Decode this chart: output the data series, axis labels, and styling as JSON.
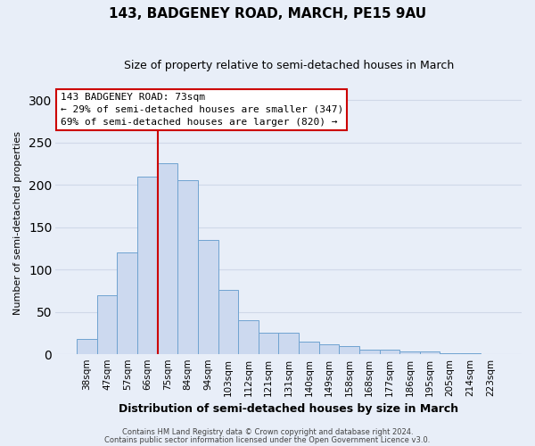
{
  "title": "143, BADGENEY ROAD, MARCH, PE15 9AU",
  "subtitle": "Size of property relative to semi-detached houses in March",
  "xlabel": "Distribution of semi-detached houses by size in March",
  "ylabel": "Number of semi-detached properties",
  "bar_labels": [
    "38sqm",
    "47sqm",
    "57sqm",
    "66sqm",
    "75sqm",
    "84sqm",
    "94sqm",
    "103sqm",
    "112sqm",
    "121sqm",
    "131sqm",
    "140sqm",
    "149sqm",
    "158sqm",
    "168sqm",
    "177sqm",
    "186sqm",
    "195sqm",
    "205sqm",
    "214sqm",
    "223sqm"
  ],
  "bar_values": [
    18,
    70,
    120,
    210,
    225,
    205,
    135,
    76,
    40,
    26,
    26,
    15,
    12,
    10,
    6,
    6,
    4,
    4,
    1,
    1,
    0
  ],
  "bar_color": "#ccd9ef",
  "bar_edge_color": "#6fa3d0",
  "vline_x_index": 4,
  "vline_color": "#cc0000",
  "ylim": [
    0,
    310
  ],
  "yticks": [
    0,
    50,
    100,
    150,
    200,
    250,
    300
  ],
  "annotation_title": "143 BADGENEY ROAD: 73sqm",
  "annotation_line1": "← 29% of semi-detached houses are smaller (347)",
  "annotation_line2": "69% of semi-detached houses are larger (820) →",
  "annotation_box_facecolor": "#ffffff",
  "annotation_box_edgecolor": "#cc0000",
  "footer1": "Contains HM Land Registry data © Crown copyright and database right 2024.",
  "footer2": "Contains public sector information licensed under the Open Government Licence v3.0.",
  "background_color": "#e8eef8",
  "grid_color": "#d0d8e8",
  "title_fontsize": 11,
  "subtitle_fontsize": 9,
  "ylabel_fontsize": 8,
  "xlabel_fontsize": 9,
  "tick_fontsize": 7.5,
  "footer_fontsize": 6.0,
  "footer_color": "#444444"
}
